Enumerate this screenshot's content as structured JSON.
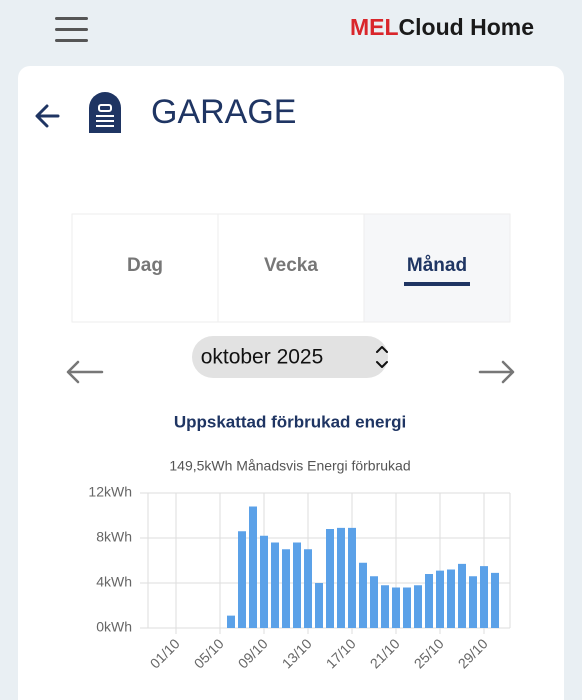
{
  "header": {
    "brand_accent": "MEL",
    "brand_rest": "Cloud Home"
  },
  "device": {
    "name": "GARAGE"
  },
  "tabs": [
    "Dag",
    "Vecka",
    "Månad"
  ],
  "active_tab": 2,
  "period": "oktober 2025",
  "chart_data": {
    "type": "bar",
    "title": "Uppskattad förbrukad energi",
    "subtitle": "149,5kWh Månadsvis Energi förbrukad",
    "categories": [
      "01/10",
      null,
      null,
      null,
      "05/10",
      null,
      null,
      null,
      "09/10",
      null,
      null,
      null,
      "13/10",
      null,
      null,
      null,
      "17/10",
      null,
      null,
      null,
      "21/10",
      null,
      null,
      null,
      "25/10",
      null,
      null,
      null,
      "29/10",
      null,
      null
    ],
    "values": [
      0,
      0,
      0,
      0,
      0,
      1.1,
      8.6,
      10.8,
      8.2,
      7.6,
      7.0,
      7.6,
      7.0,
      4.0,
      8.8,
      8.9,
      8.9,
      5.8,
      4.6,
      3.8,
      3.6,
      3.6,
      3.8,
      4.8,
      5.1,
      5.2,
      5.7,
      4.6,
      5.5,
      4.9,
      0
    ],
    "color": "#5ba1e8",
    "ylim": [
      0,
      12
    ],
    "yticks": [
      {
        "value": 0,
        "label": "0kWh"
      },
      {
        "value": 4,
        "label": "4kWh"
      },
      {
        "value": 8,
        "label": "8kWh"
      },
      {
        "value": 12,
        "label": "12kWh"
      }
    ],
    "grid": true
  }
}
